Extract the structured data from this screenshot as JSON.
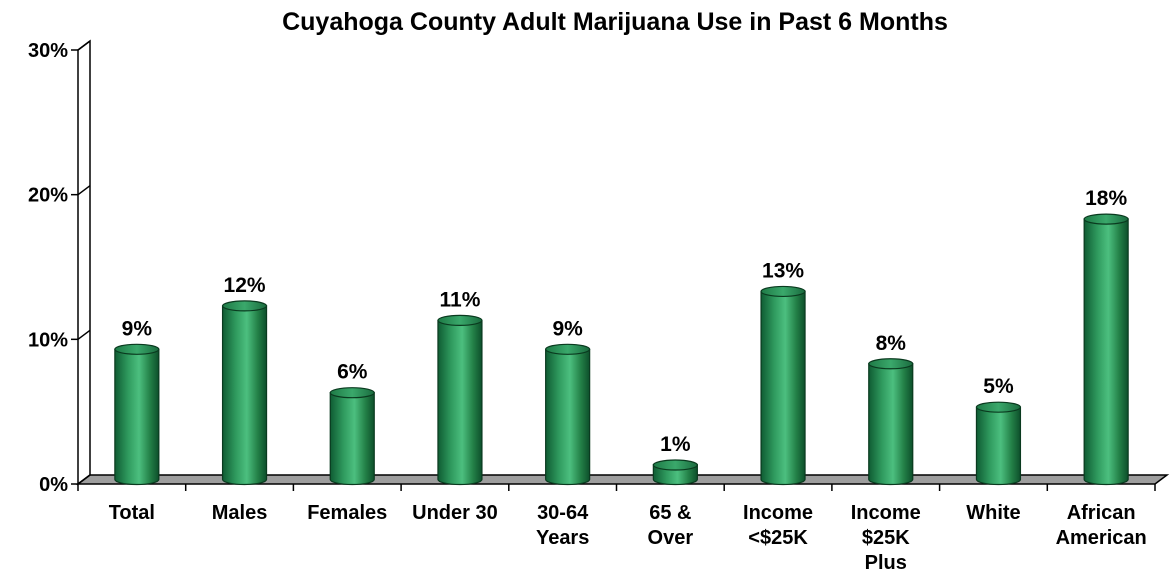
{
  "chart_data": {
    "type": "bar",
    "title": "Cuyahoga County Adult Marijuana Use in Past 6 Months",
    "xlabel": "",
    "ylabel": "",
    "ylim": [
      0,
      30
    ],
    "yticks": [
      "0%",
      "10%",
      "20%",
      "30%"
    ],
    "categories": [
      [
        "Total"
      ],
      [
        "Males"
      ],
      [
        "Females"
      ],
      [
        "Under 30"
      ],
      [
        "30-64",
        "Years"
      ],
      [
        "65 &",
        "Over"
      ],
      [
        "Income",
        "<$25K"
      ],
      [
        "Income",
        "$25K",
        "Plus"
      ],
      [
        "White"
      ],
      [
        "African",
        "American"
      ]
    ],
    "values": [
      9,
      12,
      6,
      11,
      9,
      1,
      13,
      8,
      5,
      18
    ],
    "data_labels": [
      "9%",
      "12%",
      "6%",
      "11%",
      "9%",
      "1%",
      "13%",
      "8%",
      "5%",
      "18%"
    ],
    "grid": false,
    "bar_color": "#2e8b57",
    "style": "3d-cylinder"
  }
}
